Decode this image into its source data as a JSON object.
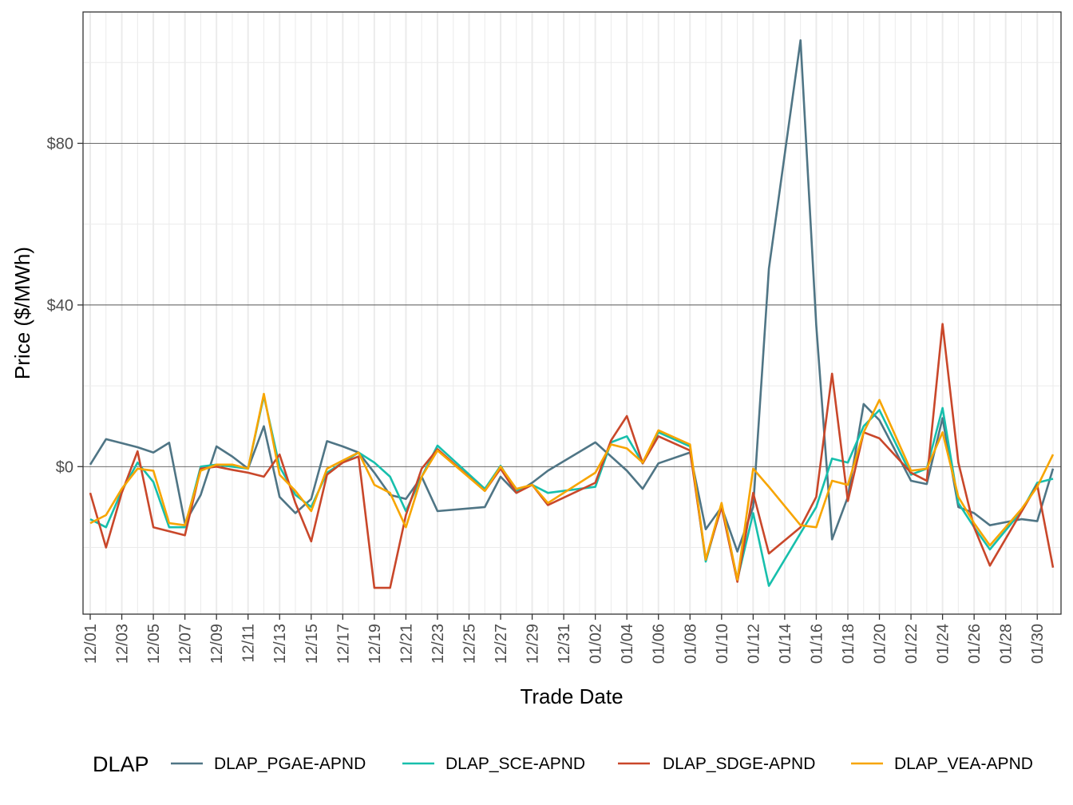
{
  "chart_data": {
    "type": "line",
    "xlabel": "Trade Date",
    "ylabel": "Price ($/MWh)",
    "x": [
      "12/01",
      "12/02",
      "12/03",
      "12/04",
      "12/05",
      "12/06",
      "12/07",
      "12/08",
      "12/09",
      "12/10",
      "12/11",
      "12/12",
      "12/13",
      "12/14",
      "12/15",
      "12/16",
      "12/17",
      "12/18",
      "12/19",
      "12/20",
      "12/21",
      "12/22",
      "12/23",
      "12/24",
      "12/25",
      "12/26",
      "12/27",
      "12/28",
      "12/29",
      "12/30",
      "12/31",
      "01/01",
      "01/02",
      "01/03",
      "01/04",
      "01/05",
      "01/06",
      "01/07",
      "01/08",
      "01/09",
      "01/10",
      "01/11",
      "01/12",
      "01/13",
      "01/14",
      "01/15",
      "01/16",
      "01/17",
      "01/18",
      "01/19",
      "01/20",
      "01/21",
      "01/22",
      "01/23",
      "01/24",
      "01/25",
      "01/26",
      "01/27",
      "01/28",
      "01/29",
      "01/30",
      "01/31"
    ],
    "x_tick_labels": [
      "12/01",
      "12/03",
      "12/05",
      "12/07",
      "12/09",
      "12/11",
      "12/13",
      "12/15",
      "12/17",
      "12/19",
      "12/21",
      "12/23",
      "12/25",
      "12/27",
      "12/29",
      "12/31",
      "01/02",
      "01/04",
      "01/06",
      "01/08",
      "01/10",
      "01/12",
      "01/14",
      "01/16",
      "01/18",
      "01/20",
      "01/22",
      "01/24",
      "01/26",
      "01/28",
      "01/30"
    ],
    "ylim": [
      -36.5,
      112.5
    ],
    "y_ticks": [
      0,
      40,
      80
    ],
    "y_tick_labels": [
      "$0",
      "$40",
      "$80"
    ],
    "grid": true,
    "legend_title": "DLAP",
    "legend_position": "bottom",
    "series": [
      {
        "name": "DLAP_PGAE-APND",
        "color": "#4f7585",
        "values": [
          0.5,
          6.8,
          5.8,
          4.8,
          3.5,
          5.9,
          -14,
          -7,
          5,
          2.5,
          -0.5,
          10,
          -7.5,
          -11.5,
          -8,
          6.3,
          5,
          3.5,
          -1.5,
          -7,
          -8,
          -2.5,
          -11,
          null,
          null,
          -10,
          -2.5,
          -6.5,
          -4,
          -1,
          null,
          null,
          6,
          null,
          -1,
          -5.5,
          0.8,
          null,
          3.5,
          -15.5,
          -10,
          -21,
          -10,
          49,
          null,
          105.5,
          35,
          -18,
          -7.5,
          15.5,
          11.5,
          null,
          -3.5,
          -4.3,
          12,
          -10,
          -11.5,
          -14.5,
          null,
          -13,
          -13.5,
          -0.5
        ]
      },
      {
        "name": "DLAP_SCE-APND",
        "color": "#17bfac",
        "values": [
          -13,
          -15,
          -6,
          1,
          -3.8,
          -15,
          -15,
          0,
          0.5,
          0,
          -0.5,
          17.5,
          0,
          -7,
          -10,
          -1.5,
          1,
          3.5,
          1,
          -2.5,
          -11,
          -2.5,
          5.2,
          null,
          null,
          -5.5,
          0.2,
          -6,
          -4.5,
          -6.5,
          null,
          null,
          -5,
          6,
          7.5,
          0.8,
          8.5,
          null,
          5,
          -23.5,
          -9.5,
          -28,
          -11.5,
          -29.5,
          null,
          null,
          -10,
          2,
          1,
          10,
          14,
          null,
          -2,
          -0.5,
          14.5,
          -9,
          -15,
          -20.5,
          null,
          -11,
          -4,
          -3
        ]
      },
      {
        "name": "DLAP_SDGE-APND",
        "color": "#c9472a",
        "values": [
          -6.5,
          -20,
          -6.5,
          3.8,
          -15,
          -16,
          -17,
          -0.5,
          0,
          -0.8,
          -1.5,
          -2.5,
          3,
          -9,
          -18.5,
          -2,
          1,
          2.5,
          -30,
          -30,
          -12,
          -0.5,
          4.3,
          null,
          null,
          -6,
          -0.5,
          -6.5,
          -4.5,
          -9.5,
          null,
          null,
          -4,
          6.5,
          12.5,
          0.8,
          7.5,
          null,
          4,
          -23,
          -10,
          -28.5,
          -6.5,
          -21.5,
          null,
          -15,
          -7.5,
          23,
          -8.5,
          8.5,
          7,
          null,
          -1.5,
          -3.5,
          35.3,
          1,
          -15,
          -24.5,
          null,
          null,
          -4.5,
          -25
        ]
      },
      {
        "name": "DLAP_VEA-APND",
        "color": "#f7a500",
        "values": [
          -14,
          -12,
          -5.5,
          -0.5,
          -1,
          -14,
          -14.5,
          -1,
          0.5,
          0.5,
          -0.5,
          18,
          -2,
          -6,
          -11,
          -0.5,
          1.5,
          3.5,
          -4.5,
          -6.5,
          -15,
          -2.5,
          4,
          null,
          null,
          -6,
          0,
          -5.5,
          -4.5,
          -9,
          null,
          null,
          -1.5,
          5.5,
          4.5,
          1,
          9,
          null,
          5.5,
          -23,
          -9,
          -28,
          -0.5,
          -5,
          null,
          -14.5,
          -15,
          -3.5,
          -4.5,
          8.5,
          16.5,
          null,
          -1,
          -0.5,
          8.5,
          -7.5,
          -14,
          -19.5,
          null,
          -10.5,
          -5,
          3
        ]
      }
    ]
  }
}
